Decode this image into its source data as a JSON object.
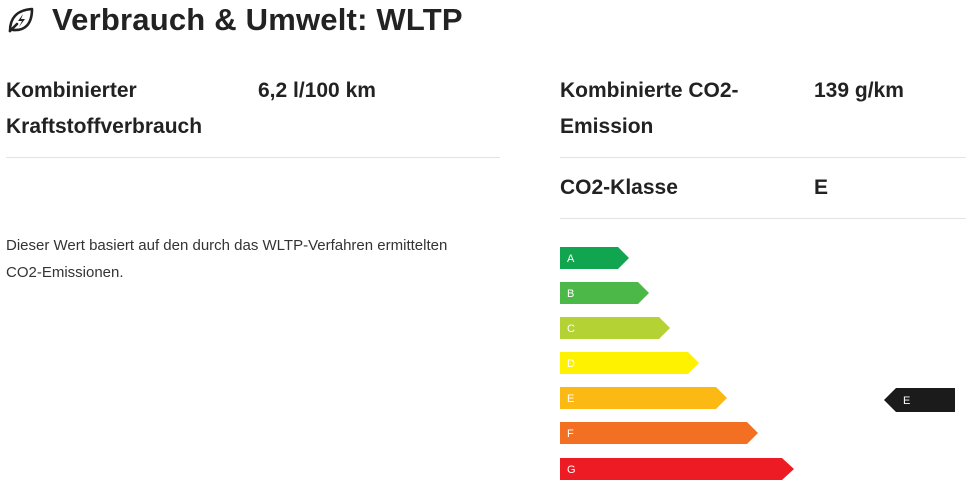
{
  "header": {
    "title": "Verbrauch & Umwelt: WLTP",
    "icon": "leaf-lightning-icon"
  },
  "left": {
    "fuel_label_line1": "Kombinierter",
    "fuel_label_line2": "Kraftstoffverbrauch",
    "fuel_value": "6,2 l/100 km",
    "note_line1": "Dieser Wert basiert auf den durch das WLTP-Verfahren ermittelten",
    "note_line2": "CO2-Emissionen."
  },
  "right": {
    "co2_label_line1": "Kombinierte CO2-",
    "co2_label_line2": "Emission",
    "co2_value": "139 g/km",
    "class_label": "CO2-Klasse",
    "class_value": "E"
  },
  "efficiency": {
    "classes": [
      {
        "letter": "A",
        "color": "#12a550"
      },
      {
        "letter": "B",
        "color": "#4cb848"
      },
      {
        "letter": "C",
        "color": "#b4d233"
      },
      {
        "letter": "D",
        "color": "#fff200"
      },
      {
        "letter": "E",
        "color": "#fdb913"
      },
      {
        "letter": "F",
        "color": "#f36f21"
      },
      {
        "letter": "G",
        "color": "#ed1c24"
      }
    ],
    "selected": "E",
    "indicator_color": "#1b1b1b"
  }
}
